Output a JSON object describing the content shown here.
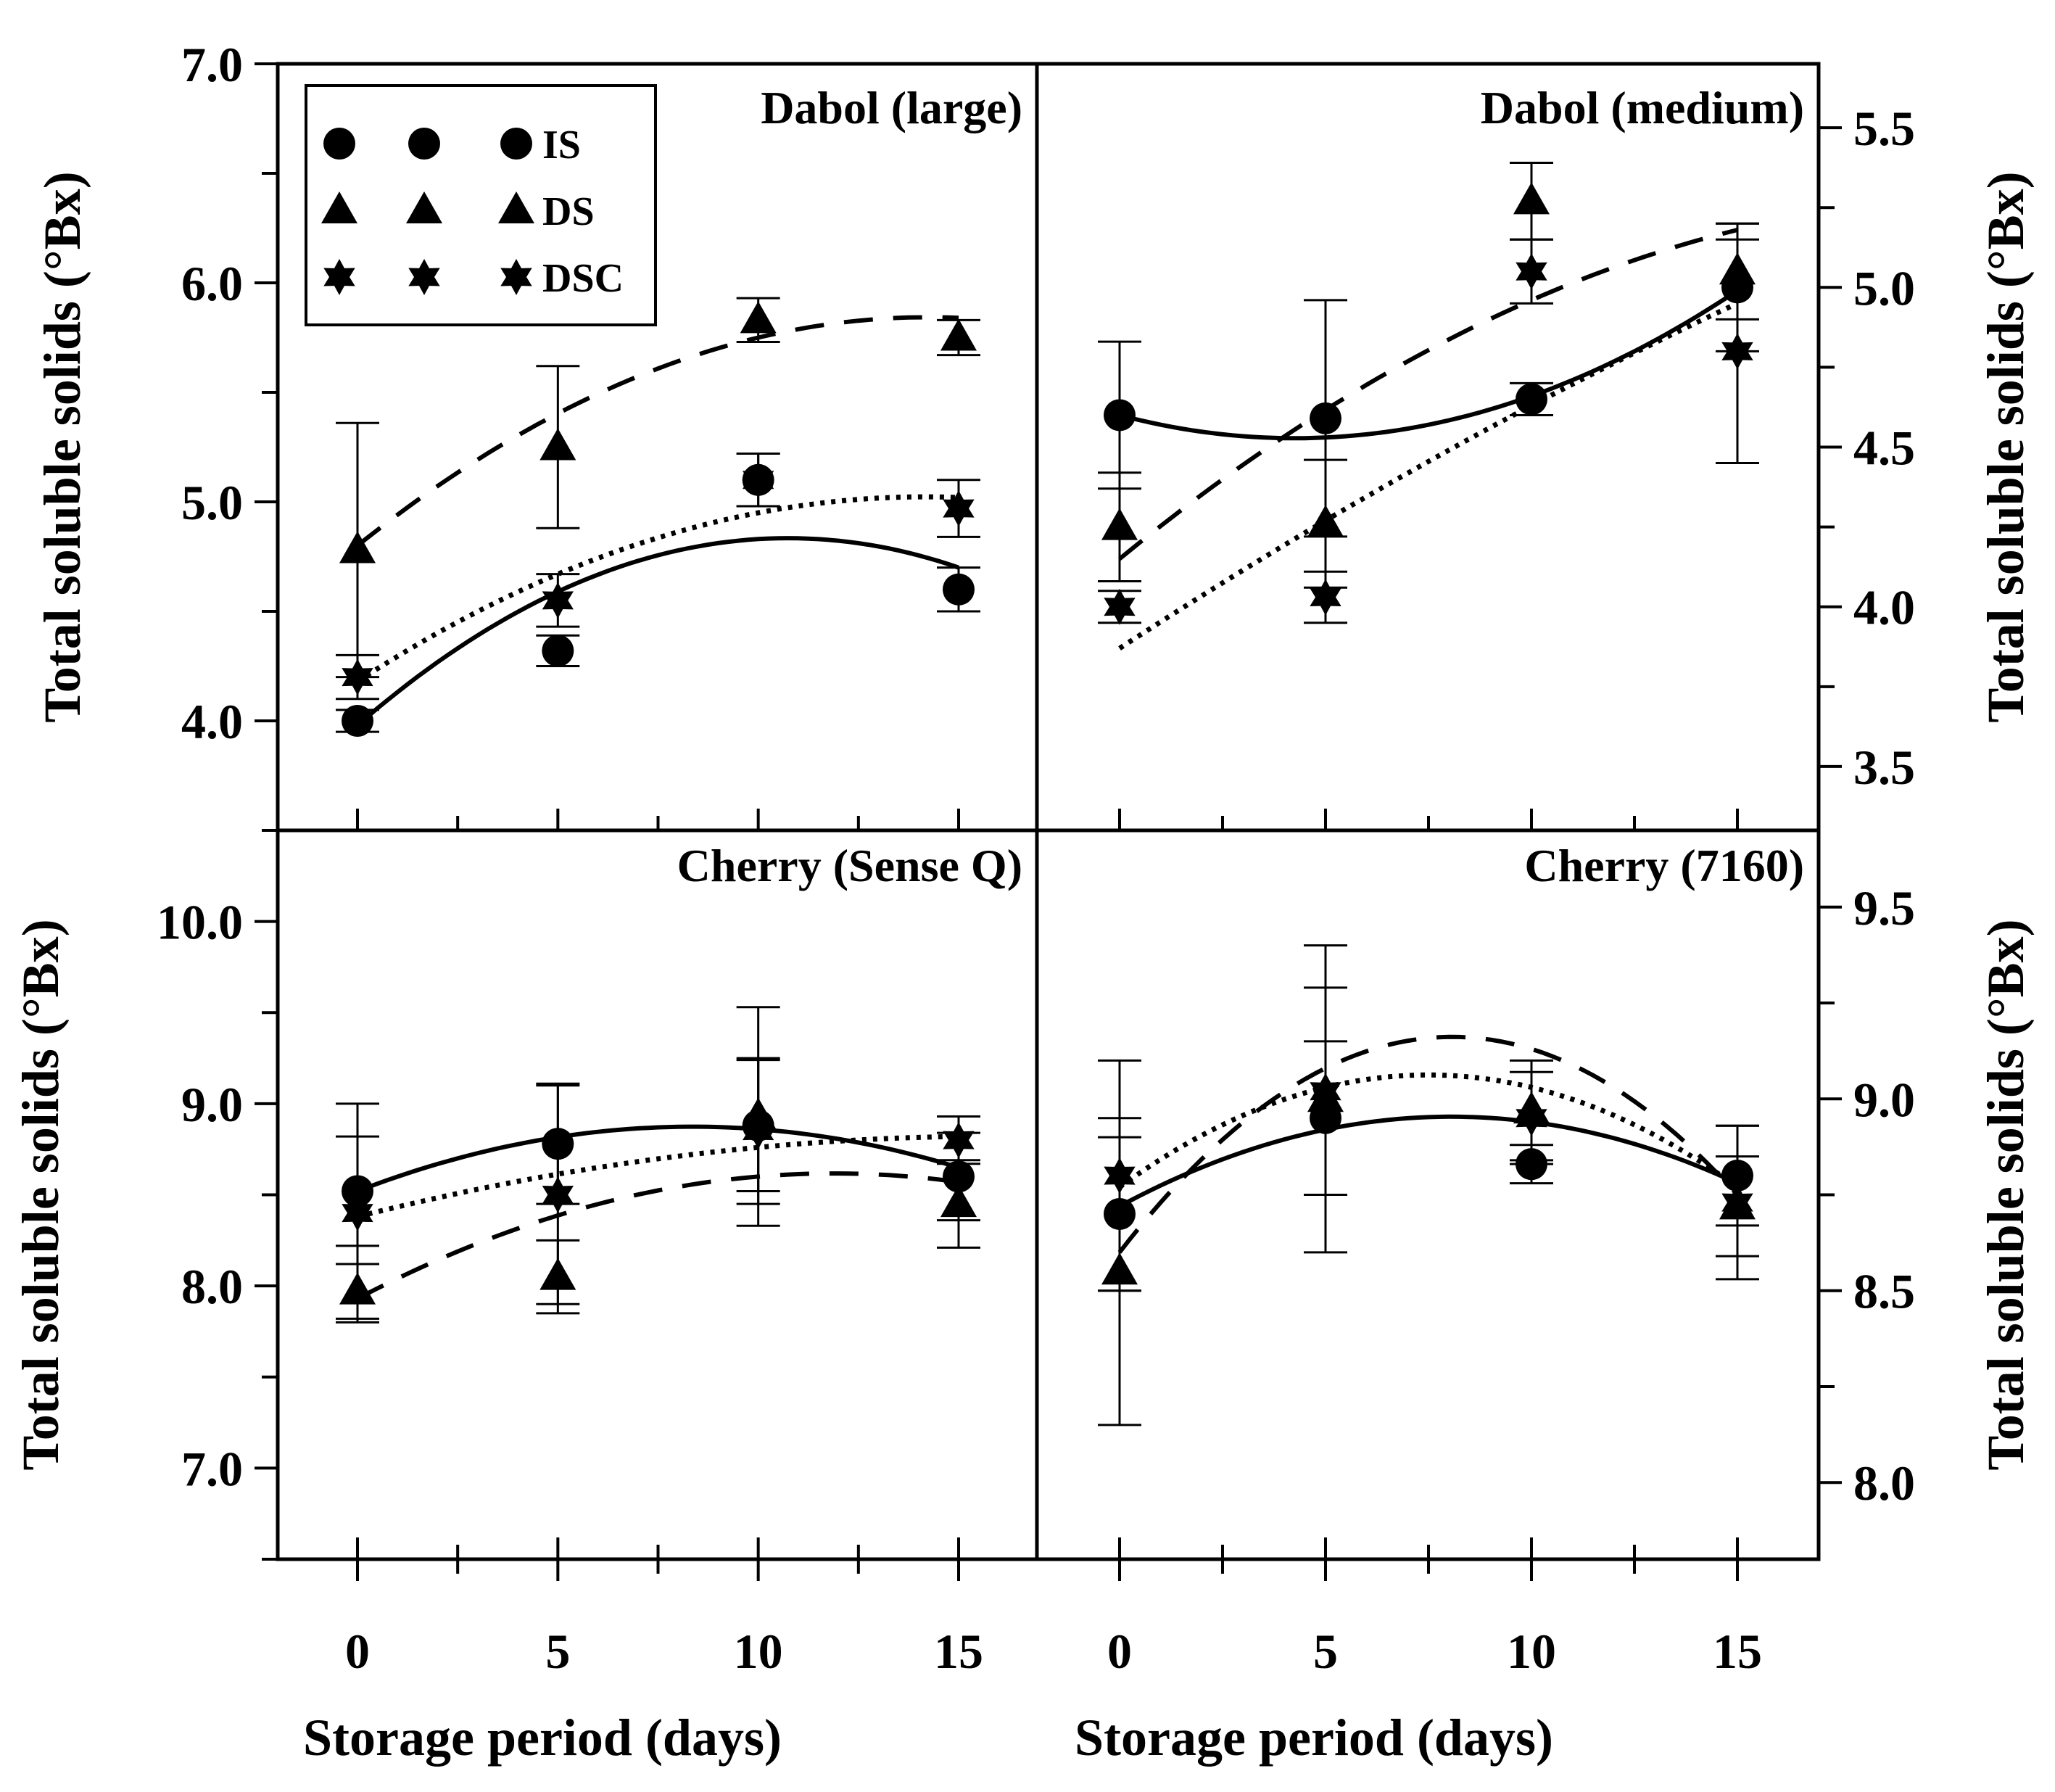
{
  "figure": {
    "xlabel": "Storage period (days)",
    "ylabel": "Total soluble solids (°Bx)"
  },
  "legend": {
    "entries": [
      {
        "label": "IS",
        "marker": "circle",
        "line": "solid"
      },
      {
        "label": "DS",
        "marker": "triangle",
        "line": "dashed"
      },
      {
        "label": "DSC",
        "marker": "star",
        "line": "dotted"
      }
    ]
  },
  "chart_data": [
    {
      "type": "scatter",
      "title": "Dabol (large)",
      "xlabel": "Storage period (days)",
      "ylabel": "Total soluble solids (°Bx)",
      "x": [
        0,
        5,
        10,
        15
      ],
      "xticks": [
        "0",
        "5",
        "10",
        "15"
      ],
      "ylim": [
        3.5,
        7.0
      ],
      "yticks": [
        "4.0",
        "5.0",
        "6.0",
        "7.0"
      ],
      "yaxis": "left",
      "legend": "top-left",
      "series": [
        {
          "name": "IS",
          "marker": "circle",
          "line": "solid",
          "values": [
            4.0,
            4.32,
            5.1,
            4.6
          ],
          "err": [
            0.05,
            0.07,
            0.12,
            0.1
          ],
          "fit": [
            [
              0,
              3.98
            ],
            [
              15,
              4.7
            ],
            [
              10,
              4.83
            ]
          ]
        },
        {
          "name": "DS",
          "marker": "triangle",
          "line": "dashed",
          "values": [
            4.78,
            5.25,
            5.83,
            5.75
          ],
          "err": [
            0.58,
            0.37,
            0.1,
            0.08
          ],
          "fit": [
            [
              0,
              4.8
            ],
            [
              15,
              5.84
            ],
            [
              10,
              5.75
            ]
          ]
        },
        {
          "name": "DSC",
          "marker": "star",
          "line": "dotted",
          "values": [
            4.2,
            4.55,
            5.1,
            4.97
          ],
          "err": [
            0.1,
            0.12,
            0.12,
            0.13
          ],
          "fit": [
            [
              0,
              4.18
            ],
            [
              15,
              5.02
            ],
            [
              10,
              4.95
            ]
          ]
        }
      ]
    },
    {
      "type": "scatter",
      "title": "Dabol (medium)",
      "xlabel": "Storage period (days)",
      "ylabel": "Total soluble solids (°Bx)",
      "x": [
        0,
        5,
        10,
        15
      ],
      "xticks": [
        "0",
        "5",
        "10",
        "15"
      ],
      "ylim": [
        3.3,
        5.7
      ],
      "yticks": [
        "3.5",
        "4.0",
        "4.5",
        "5.0",
        "5.5"
      ],
      "yaxis": "right",
      "series": [
        {
          "name": "IS",
          "marker": "circle",
          "line": "solid",
          "values": [
            4.6,
            4.59,
            4.65,
            5.0
          ],
          "err": [
            0.23,
            0.37,
            0.05,
            0.2
          ],
          "fit": [
            [
              0,
              4.6
            ],
            [
              15,
              4.99
            ],
            [
              10,
              4.66
            ]
          ]
        },
        {
          "name": "DS",
          "marker": "triangle",
          "line": "dashed",
          "values": [
            4.25,
            4.26,
            5.27,
            5.05
          ],
          "err": [
            0.17,
            0.2,
            0.12,
            0.15
          ],
          "fit": [
            [
              0,
              4.15
            ],
            [
              15,
              5.18
            ],
            [
              10,
              4.96
            ]
          ]
        },
        {
          "name": "DSC",
          "marker": "star",
          "line": "dotted",
          "values": [
            4.0,
            4.03,
            5.05,
            4.8
          ],
          "err": [
            0.05,
            0.08,
            0.1,
            0.35
          ],
          "fit": [
            [
              0,
              3.87
            ],
            [
              15,
              4.95
            ],
            [
              10,
              4.63
            ]
          ]
        }
      ]
    },
    {
      "type": "scatter",
      "title": "Cherry (Sense Q)",
      "xlabel": "Storage period (days)",
      "ylabel": "Total soluble solids (°Bx)",
      "x": [
        0,
        5,
        10,
        15
      ],
      "xticks": [
        "0",
        "5",
        "10",
        "15"
      ],
      "ylim": [
        6.5,
        10.5
      ],
      "yticks": [
        "7.0",
        "8.0",
        "9.0",
        "10.0"
      ],
      "yaxis": "left",
      "series": [
        {
          "name": "IS",
          "marker": "circle",
          "line": "solid",
          "values": [
            8.52,
            8.78,
            8.88,
            8.6
          ],
          "err": [
            0.3,
            0.33,
            0.36,
            0.24
          ],
          "fit": [
            [
              0,
              8.52
            ],
            [
              15,
              8.65
            ],
            [
              10,
              8.86
            ]
          ]
        },
        {
          "name": "DS",
          "marker": "triangle",
          "line": "dashed",
          "values": [
            7.97,
            8.05,
            8.93,
            8.45
          ],
          "err": [
            0.15,
            0.2,
            0.6,
            0.24
          ],
          "fit": [
            [
              0,
              7.93
            ],
            [
              15,
              8.57
            ],
            [
              10,
              8.6
            ]
          ]
        },
        {
          "name": "DSC",
          "marker": "star",
          "line": "dotted",
          "values": [
            8.4,
            8.5,
            8.85,
            8.8
          ],
          "err": [
            0.6,
            0.6,
            0.4,
            0.13
          ],
          "fit": [
            [
              0,
              8.38
            ],
            [
              15,
              8.82
            ],
            [
              10,
              8.76
            ]
          ]
        }
      ]
    },
    {
      "type": "scatter",
      "title": "Cherry (7160)",
      "xlabel": "Storage period (days)",
      "ylabel": "Total soluble solids (°Bx)",
      "x": [
        0,
        5,
        10,
        15
      ],
      "xticks": [
        "0",
        "5",
        "10",
        "15"
      ],
      "ylim": [
        7.8,
        9.7
      ],
      "yticks": [
        "8.0",
        "8.5",
        "9.0",
        "9.5"
      ],
      "yaxis": "right",
      "series": [
        {
          "name": "IS",
          "marker": "circle",
          "line": "solid",
          "values": [
            8.7,
            8.95,
            8.83,
            8.8
          ],
          "err": [
            0.2,
            0.2,
            0.05,
            0.13
          ],
          "fit": [
            [
              0,
              8.72
            ],
            [
              15,
              8.78
            ],
            [
              10,
              8.94
            ]
          ]
        },
        {
          "name": "DS",
          "marker": "triangle",
          "line": "dashed",
          "values": [
            8.55,
            9.0,
            8.97,
            8.72
          ],
          "err": [
            0.4,
            0.4,
            0.13,
            0.13
          ],
          "fit": [
            [
              0,
              8.6
            ],
            [
              15,
              8.75
            ],
            [
              10,
              9.13
            ]
          ]
        },
        {
          "name": "DSC",
          "marker": "star",
          "line": "dotted",
          "values": [
            8.8,
            9.02,
            8.95,
            8.73
          ],
          "err": [
            0.3,
            0.27,
            0.12,
            0.2
          ],
          "fit": [
            [
              0,
              8.77
            ],
            [
              15,
              8.77
            ],
            [
              10,
              9.03
            ]
          ]
        }
      ]
    }
  ]
}
